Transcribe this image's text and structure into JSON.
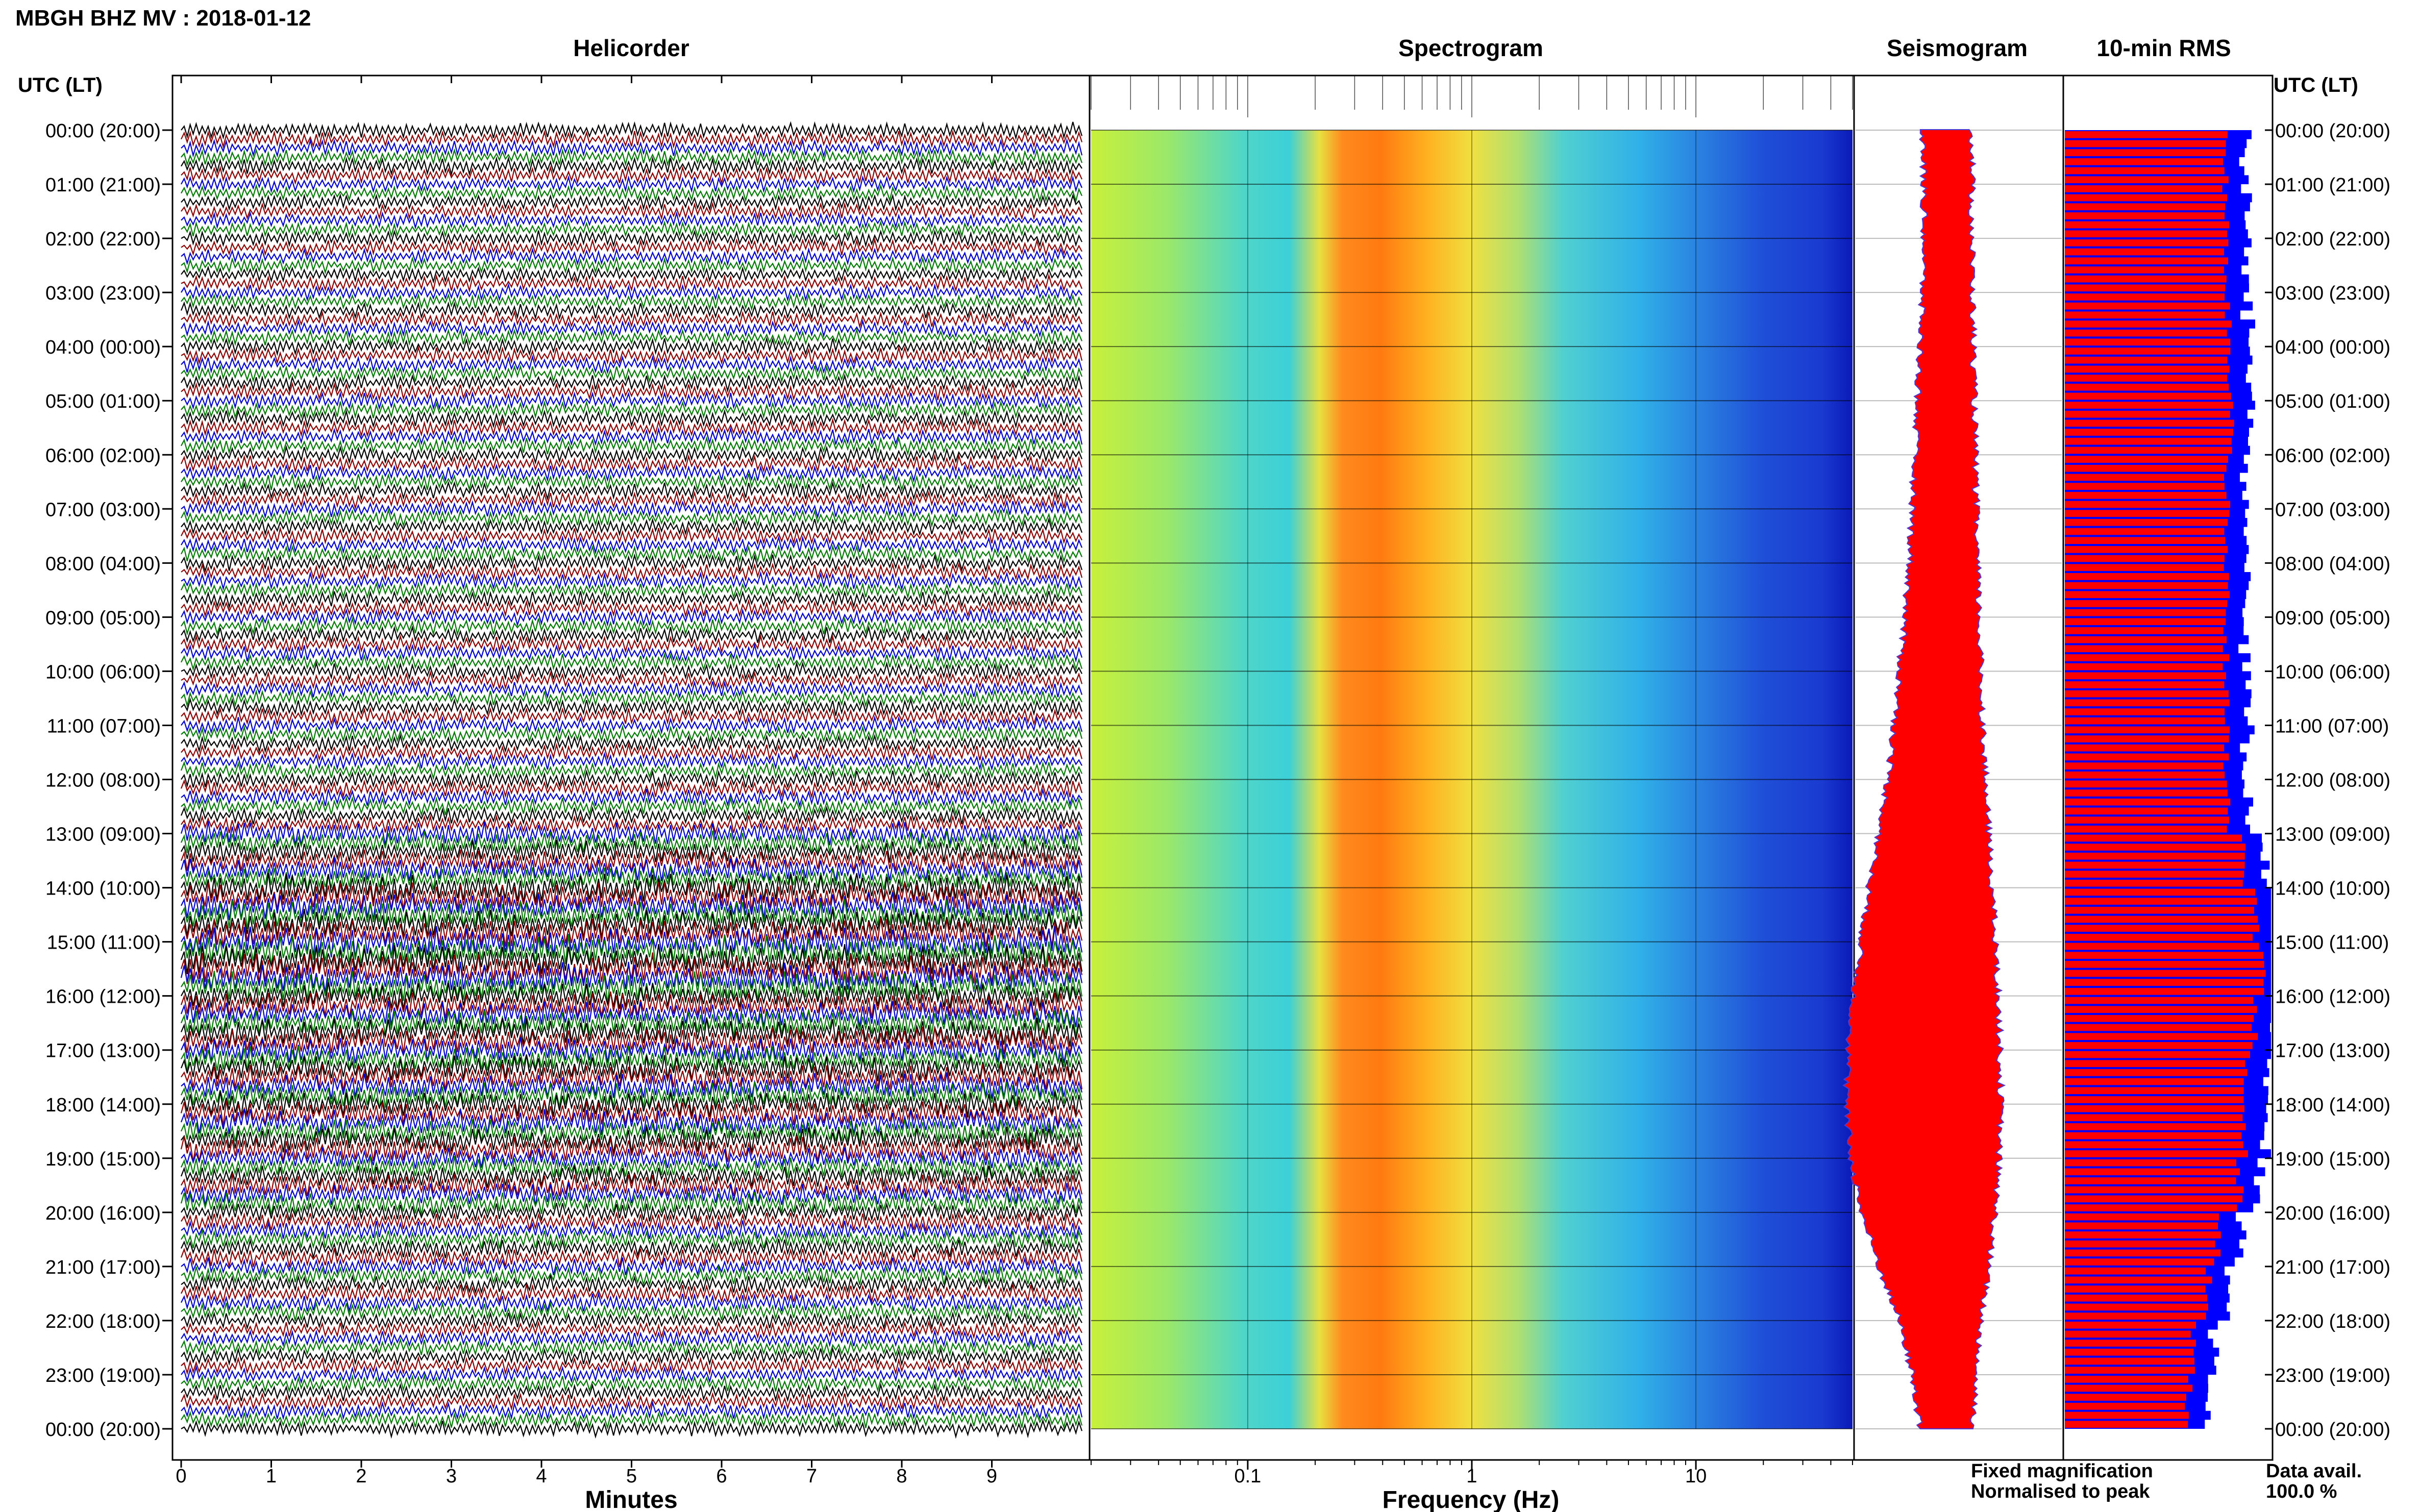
{
  "header": {
    "station_title": "MBGH BHZ MV : 2018-01-12"
  },
  "panels": {
    "helicorder": "Helicorder",
    "spectrogram": "Spectrogram",
    "seismogram": "Seismogram",
    "rms": "10-min RMS"
  },
  "axes": {
    "time_header": "UTC (LT)",
    "time_labels": [
      "00:00 (20:00)",
      "01:00 (21:00)",
      "02:00 (22:00)",
      "03:00 (23:00)",
      "04:00 (00:00)",
      "05:00 (01:00)",
      "06:00 (02:00)",
      "07:00 (03:00)",
      "08:00 (04:00)",
      "09:00 (05:00)",
      "10:00 (06:00)",
      "11:00 (07:00)",
      "12:00 (08:00)",
      "13:00 (09:00)",
      "14:00 (10:00)",
      "15:00 (11:00)",
      "16:00 (12:00)",
      "17:00 (13:00)",
      "18:00 (14:00)",
      "19:00 (15:00)",
      "20:00 (16:00)",
      "21:00 (17:00)",
      "22:00 (18:00)",
      "23:00 (19:00)",
      "00:00 (20:00)"
    ],
    "minutes_label": "Minutes",
    "minutes_ticks": [
      "0",
      "1",
      "2",
      "3",
      "4",
      "5",
      "6",
      "7",
      "8",
      "9"
    ],
    "frequency_label": "Frequency (Hz)",
    "frequency_ticks": [
      "0.1",
      "1",
      "10"
    ]
  },
  "legend": {
    "fixed": "Fixed magnification",
    "normalised": "Normalised to peak",
    "fixed_color": "#0000ff",
    "normalised_color": "#ff0000",
    "avail_label": "Data avail.",
    "avail_value": "100.0 %"
  },
  "colors": {
    "trace_cycle": [
      "#000000",
      "#8b0000",
      "#0000cc",
      "#007a00"
    ],
    "rms_bar": "#ff0000",
    "rms_fill": "#0000ff"
  },
  "chart_data": [
    {
      "type": "line",
      "name": "helicorder",
      "x_unit": "minutes",
      "xlim": [
        0,
        10
      ],
      "rows": 145,
      "hour_activity": [
        0.8,
        0.75,
        0.75,
        0.75,
        0.8,
        0.8,
        0.8,
        0.8,
        0.8,
        0.8,
        0.8,
        0.8,
        0.85,
        1.2,
        1.5,
        1.6,
        1.4,
        1.35,
        1.3,
        1.15,
        0.95,
        0.9,
        0.8,
        0.8
      ]
    },
    {
      "type": "heatmap",
      "name": "spectrogram",
      "x_scale": "log",
      "xlim": [
        0.02,
        50
      ],
      "peak_frequency_hz": 0.3
    },
    {
      "type": "area",
      "name": "seismogram",
      "hour_amplitude": [
        0.28,
        0.27,
        0.27,
        0.28,
        0.3,
        0.32,
        0.34,
        0.36,
        0.38,
        0.42,
        0.46,
        0.5,
        0.55,
        0.62,
        0.7,
        0.76,
        0.82,
        0.86,
        0.88,
        0.84,
        0.76,
        0.62,
        0.46,
        0.36,
        0.3
      ]
    },
    {
      "type": "bar",
      "name": "10-min RMS",
      "rows": 144,
      "hour_level": [
        0.78,
        0.78,
        0.78,
        0.79,
        0.8,
        0.81,
        0.79,
        0.78,
        0.79,
        0.78,
        0.78,
        0.78,
        0.79,
        0.86,
        0.93,
        0.96,
        0.92,
        0.88,
        0.87,
        0.85,
        0.74,
        0.7,
        0.63,
        0.6
      ]
    }
  ]
}
